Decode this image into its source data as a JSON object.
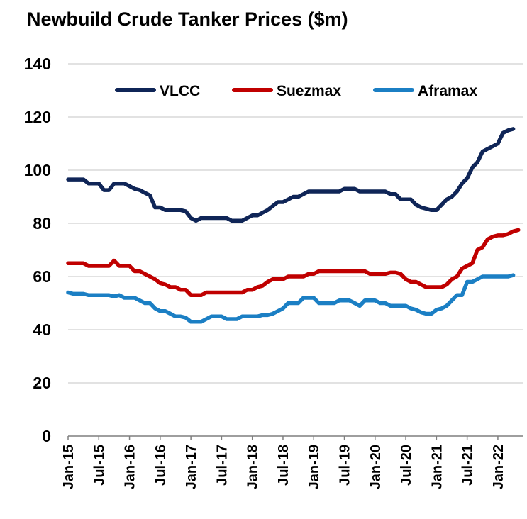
{
  "chart_data": {
    "type": "line",
    "title": "Newbuild Crude Tanker Prices ($m)",
    "xlabel": "",
    "ylabel": "",
    "ylim": [
      0,
      140
    ],
    "yticks": [
      0,
      20,
      40,
      60,
      80,
      100,
      120,
      140
    ],
    "xticks": [
      "Jan-15",
      "Jul-15",
      "Jan-16",
      "Jul-16",
      "Jan-17",
      "Jul-17",
      "Jan-18",
      "Jul-18",
      "Jan-19",
      "Jul-19",
      "Jan-20",
      "Jul-20",
      "Jan-21",
      "Jul-21",
      "Jan-22"
    ],
    "x_start": "Jan-15",
    "x_end": "Jun-22",
    "grid": "horizontal",
    "legend_position": "top",
    "series": [
      {
        "name": "VLCC",
        "color": "#0f2557",
        "points": [
          [
            "2015-01",
            96.5
          ],
          [
            "2015-02",
            96.5
          ],
          [
            "2015-03",
            96.5
          ],
          [
            "2015-04",
            96.5
          ],
          [
            "2015-05",
            95
          ],
          [
            "2015-06",
            95
          ],
          [
            "2015-07",
            95
          ],
          [
            "2015-08",
            92.5
          ],
          [
            "2015-09",
            92.5
          ],
          [
            "2015-10",
            95
          ],
          [
            "2015-11",
            95
          ],
          [
            "2015-12",
            95
          ],
          [
            "2016-01",
            94
          ],
          [
            "2016-02",
            93
          ],
          [
            "2016-03",
            92.5
          ],
          [
            "2016-04",
            91.5
          ],
          [
            "2016-05",
            90.5
          ],
          [
            "2016-06",
            86
          ],
          [
            "2016-07",
            86
          ],
          [
            "2016-08",
            85
          ],
          [
            "2016-09",
            85
          ],
          [
            "2016-10",
            85
          ],
          [
            "2016-11",
            85
          ],
          [
            "2016-12",
            84.5
          ],
          [
            "2017-01",
            82
          ],
          [
            "2017-02",
            81
          ],
          [
            "2017-03",
            82
          ],
          [
            "2017-04",
            82
          ],
          [
            "2017-05",
            82
          ],
          [
            "2017-06",
            82
          ],
          [
            "2017-07",
            82
          ],
          [
            "2017-08",
            82
          ],
          [
            "2017-09",
            81
          ],
          [
            "2017-10",
            81
          ],
          [
            "2017-11",
            81
          ],
          [
            "2017-12",
            82
          ],
          [
            "2018-01",
            83
          ],
          [
            "2018-02",
            83
          ],
          [
            "2018-03",
            84
          ],
          [
            "2018-04",
            85
          ],
          [
            "2018-05",
            86.5
          ],
          [
            "2018-06",
            88
          ],
          [
            "2018-07",
            88
          ],
          [
            "2018-08",
            89
          ],
          [
            "2018-09",
            90
          ],
          [
            "2018-10",
            90
          ],
          [
            "2018-11",
            91
          ],
          [
            "2018-12",
            92
          ],
          [
            "2019-01",
            92
          ],
          [
            "2019-02",
            92
          ],
          [
            "2019-03",
            92
          ],
          [
            "2019-04",
            92
          ],
          [
            "2019-05",
            92
          ],
          [
            "2019-06",
            92
          ],
          [
            "2019-07",
            93
          ],
          [
            "2019-08",
            93
          ],
          [
            "2019-09",
            93
          ],
          [
            "2019-10",
            92
          ],
          [
            "2019-11",
            92
          ],
          [
            "2019-12",
            92
          ],
          [
            "2020-01",
            92
          ],
          [
            "2020-02",
            92
          ],
          [
            "2020-03",
            92
          ],
          [
            "2020-04",
            91
          ],
          [
            "2020-05",
            91
          ],
          [
            "2020-06",
            89
          ],
          [
            "2020-07",
            89
          ],
          [
            "2020-08",
            89
          ],
          [
            "2020-09",
            87
          ],
          [
            "2020-10",
            86
          ],
          [
            "2020-11",
            85.5
          ],
          [
            "2020-12",
            85
          ],
          [
            "2021-01",
            85
          ],
          [
            "2021-02",
            87
          ],
          [
            "2021-03",
            89
          ],
          [
            "2021-04",
            90
          ],
          [
            "2021-05",
            92
          ],
          [
            "2021-06",
            95
          ],
          [
            "2021-07",
            97
          ],
          [
            "2021-08",
            101
          ],
          [
            "2021-09",
            103
          ],
          [
            "2021-10",
            107
          ],
          [
            "2021-11",
            108
          ],
          [
            "2021-12",
            109
          ],
          [
            "2022-01",
            110
          ],
          [
            "2022-02",
            114
          ],
          [
            "2022-03",
            115
          ],
          [
            "2022-04",
            115.5
          ]
        ]
      },
      {
        "name": "Suezmax",
        "color": "#c00000",
        "points": [
          [
            "2015-01",
            65
          ],
          [
            "2015-02",
            65
          ],
          [
            "2015-03",
            65
          ],
          [
            "2015-04",
            65
          ],
          [
            "2015-05",
            64
          ],
          [
            "2015-06",
            64
          ],
          [
            "2015-07",
            64
          ],
          [
            "2015-08",
            64
          ],
          [
            "2015-09",
            64
          ],
          [
            "2015-10",
            66
          ],
          [
            "2015-11",
            64
          ],
          [
            "2015-12",
            64
          ],
          [
            "2016-01",
            64
          ],
          [
            "2016-02",
            62
          ],
          [
            "2016-03",
            62
          ],
          [
            "2016-04",
            61
          ],
          [
            "2016-05",
            60
          ],
          [
            "2016-06",
            59
          ],
          [
            "2016-07",
            57.5
          ],
          [
            "2016-08",
            57
          ],
          [
            "2016-09",
            56
          ],
          [
            "2016-10",
            56
          ],
          [
            "2016-11",
            55
          ],
          [
            "2016-12",
            55
          ],
          [
            "2017-01",
            53
          ],
          [
            "2017-02",
            53
          ],
          [
            "2017-03",
            53
          ],
          [
            "2017-04",
            54
          ],
          [
            "2017-05",
            54
          ],
          [
            "2017-06",
            54
          ],
          [
            "2017-07",
            54
          ],
          [
            "2017-08",
            54
          ],
          [
            "2017-09",
            54
          ],
          [
            "2017-10",
            54
          ],
          [
            "2017-11",
            54
          ],
          [
            "2017-12",
            55
          ],
          [
            "2018-01",
            55
          ],
          [
            "2018-02",
            56
          ],
          [
            "2018-03",
            56.5
          ],
          [
            "2018-04",
            58
          ],
          [
            "2018-05",
            59
          ],
          [
            "2018-06",
            59
          ],
          [
            "2018-07",
            59
          ],
          [
            "2018-08",
            60
          ],
          [
            "2018-09",
            60
          ],
          [
            "2018-10",
            60
          ],
          [
            "2018-11",
            60
          ],
          [
            "2018-12",
            61
          ],
          [
            "2019-01",
            61
          ],
          [
            "2019-02",
            62
          ],
          [
            "2019-03",
            62
          ],
          [
            "2019-04",
            62
          ],
          [
            "2019-05",
            62
          ],
          [
            "2019-06",
            62
          ],
          [
            "2019-07",
            62
          ],
          [
            "2019-08",
            62
          ],
          [
            "2019-09",
            62
          ],
          [
            "2019-10",
            62
          ],
          [
            "2019-11",
            62
          ],
          [
            "2019-12",
            61
          ],
          [
            "2020-01",
            61
          ],
          [
            "2020-02",
            61
          ],
          [
            "2020-03",
            61
          ],
          [
            "2020-04",
            61.5
          ],
          [
            "2020-05",
            61.5
          ],
          [
            "2020-06",
            61
          ],
          [
            "2020-07",
            59
          ],
          [
            "2020-08",
            58
          ],
          [
            "2020-09",
            58
          ],
          [
            "2020-10",
            57
          ],
          [
            "2020-11",
            56
          ],
          [
            "2020-12",
            56
          ],
          [
            "2021-01",
            56
          ],
          [
            "2021-02",
            56
          ],
          [
            "2021-03",
            57
          ],
          [
            "2021-04",
            59
          ],
          [
            "2021-05",
            60
          ],
          [
            "2021-06",
            63
          ],
          [
            "2021-07",
            64
          ],
          [
            "2021-08",
            65
          ],
          [
            "2021-09",
            70
          ],
          [
            "2021-10",
            71
          ],
          [
            "2021-11",
            74
          ],
          [
            "2021-12",
            75
          ],
          [
            "2022-01",
            75.5
          ],
          [
            "2022-02",
            75.5
          ],
          [
            "2022-03",
            76
          ],
          [
            "2022-04",
            77
          ],
          [
            "2022-05",
            77.5
          ]
        ]
      },
      {
        "name": "Aframax",
        "color": "#1b7fc4",
        "points": [
          [
            "2015-01",
            54
          ],
          [
            "2015-02",
            53.5
          ],
          [
            "2015-03",
            53.5
          ],
          [
            "2015-04",
            53.5
          ],
          [
            "2015-05",
            53
          ],
          [
            "2015-06",
            53
          ],
          [
            "2015-07",
            53
          ],
          [
            "2015-08",
            53
          ],
          [
            "2015-09",
            53
          ],
          [
            "2015-10",
            52.5
          ],
          [
            "2015-11",
            53
          ],
          [
            "2015-12",
            52
          ],
          [
            "2016-01",
            52
          ],
          [
            "2016-02",
            52
          ],
          [
            "2016-03",
            51
          ],
          [
            "2016-04",
            50
          ],
          [
            "2016-05",
            50
          ],
          [
            "2016-06",
            48
          ],
          [
            "2016-07",
            47
          ],
          [
            "2016-08",
            47
          ],
          [
            "2016-09",
            46
          ],
          [
            "2016-10",
            45
          ],
          [
            "2016-11",
            45
          ],
          [
            "2016-12",
            44.5
          ],
          [
            "2017-01",
            43
          ],
          [
            "2017-02",
            43
          ],
          [
            "2017-03",
            43
          ],
          [
            "2017-04",
            44
          ],
          [
            "2017-05",
            45
          ],
          [
            "2017-06",
            45
          ],
          [
            "2017-07",
            45
          ],
          [
            "2017-08",
            44
          ],
          [
            "2017-09",
            44
          ],
          [
            "2017-10",
            44
          ],
          [
            "2017-11",
            45
          ],
          [
            "2017-12",
            45
          ],
          [
            "2018-01",
            45
          ],
          [
            "2018-02",
            45
          ],
          [
            "2018-03",
            45.5
          ],
          [
            "2018-04",
            45.5
          ],
          [
            "2018-05",
            46
          ],
          [
            "2018-06",
            47
          ],
          [
            "2018-07",
            48
          ],
          [
            "2018-08",
            50
          ],
          [
            "2018-09",
            50
          ],
          [
            "2018-10",
            50
          ],
          [
            "2018-11",
            52
          ],
          [
            "2018-12",
            52
          ],
          [
            "2019-01",
            52
          ],
          [
            "2019-02",
            50
          ],
          [
            "2019-03",
            50
          ],
          [
            "2019-04",
            50
          ],
          [
            "2019-05",
            50
          ],
          [
            "2019-06",
            51
          ],
          [
            "2019-07",
            51
          ],
          [
            "2019-08",
            51
          ],
          [
            "2019-09",
            50
          ],
          [
            "2019-10",
            49
          ],
          [
            "2019-11",
            51
          ],
          [
            "2019-12",
            51
          ],
          [
            "2020-01",
            51
          ],
          [
            "2020-02",
            50
          ],
          [
            "2020-03",
            50
          ],
          [
            "2020-04",
            49
          ],
          [
            "2020-05",
            49
          ],
          [
            "2020-06",
            49
          ],
          [
            "2020-07",
            49
          ],
          [
            "2020-08",
            48
          ],
          [
            "2020-09",
            47.5
          ],
          [
            "2020-10",
            46.5
          ],
          [
            "2020-11",
            46
          ],
          [
            "2020-12",
            46
          ],
          [
            "2021-01",
            47.5
          ],
          [
            "2021-02",
            48
          ],
          [
            "2021-03",
            49
          ],
          [
            "2021-04",
            51
          ],
          [
            "2021-05",
            53
          ],
          [
            "2021-06",
            53
          ],
          [
            "2021-07",
            58
          ],
          [
            "2021-08",
            58
          ],
          [
            "2021-09",
            59
          ],
          [
            "2021-10",
            60
          ],
          [
            "2021-11",
            60
          ],
          [
            "2021-12",
            60
          ],
          [
            "2022-01",
            60
          ],
          [
            "2022-02",
            60
          ],
          [
            "2022-03",
            60
          ],
          [
            "2022-04",
            60.5
          ]
        ]
      }
    ]
  }
}
